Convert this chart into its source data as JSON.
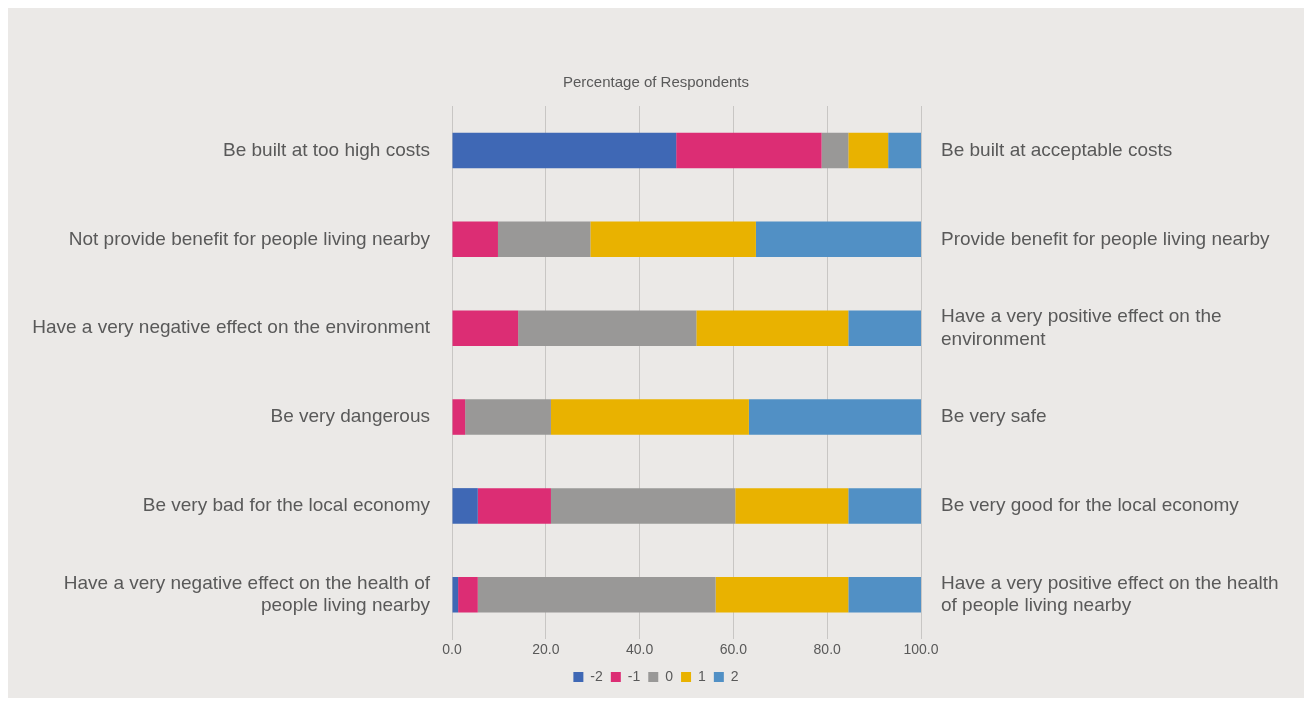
{
  "chart_data": {
    "type": "bar",
    "orientation": "horizontal",
    "stacked": true,
    "title": "Percentage of Respondents",
    "categories": [
      "Be built at too high costs",
      "Not provide benefit for people living nearby",
      "Have a very negative effect on the environment",
      "Be very dangerous",
      "Be very bad for the local economy",
      "Have a very negative effect on the health of people living nearby"
    ],
    "y2_categories": [
      "Be built at acceptable costs",
      "Provide benefit for people living nearby",
      "Have a very positive effect on the environment",
      "Be very safe",
      "Be very good for the local economy",
      "Have a very positive effect on the health of people living nearby"
    ],
    "series": [
      {
        "name": "-2",
        "color": "#3f68b5",
        "values": [
          47.8,
          0,
          0,
          0,
          5.5,
          1.3
        ]
      },
      {
        "name": "-1",
        "color": "#dc2d74",
        "values": [
          31.0,
          9.8,
          14.1,
          2.8,
          15.6,
          4.2
        ]
      },
      {
        "name": "0",
        "color": "#999897",
        "values": [
          5.7,
          19.7,
          38.0,
          18.3,
          39.3,
          50.7
        ]
      },
      {
        "name": "1",
        "color": "#e9b200",
        "values": [
          8.5,
          35.3,
          32.4,
          42.2,
          24.1,
          28.3
        ]
      },
      {
        "name": "2",
        "color": "#5190c5",
        "values": [
          7.0,
          35.2,
          15.5,
          36.7,
          15.5,
          15.5
        ]
      }
    ],
    "xlim": [
      0,
      100
    ],
    "xticks": [
      {
        "value": 0,
        "label": "0.0"
      },
      {
        "value": 20,
        "label": "20.0"
      },
      {
        "value": 40,
        "label": "40.0"
      },
      {
        "value": 60,
        "label": "60.0"
      },
      {
        "value": 80,
        "label": "80.0"
      },
      {
        "value": 100,
        "label": "100.0"
      }
    ],
    "grid": "x",
    "legend": "bottom"
  }
}
